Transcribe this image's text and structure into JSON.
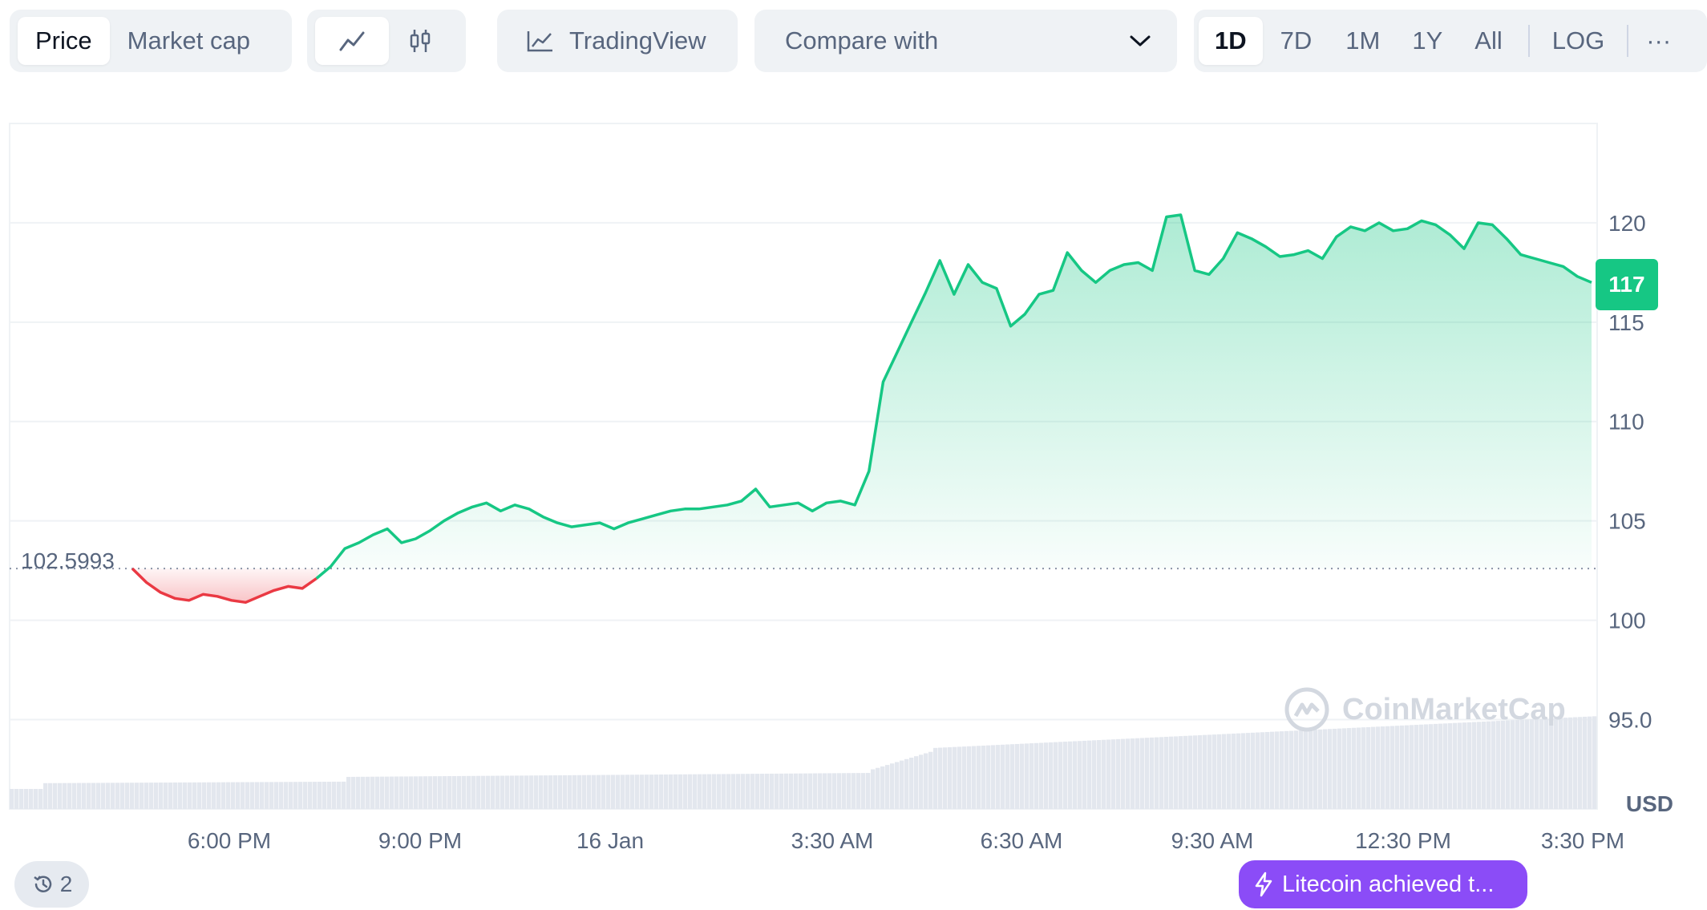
{
  "toolbar": {
    "type_tabs": [
      {
        "label": "Price",
        "active": true
      },
      {
        "label": "Market cap",
        "active": false
      }
    ],
    "chart_style": {
      "line_icon": "line-chart-icon",
      "candle_icon": "candlestick-icon",
      "active": "line"
    },
    "tradingview_label": "TradingView",
    "tradingview_icon": "trading-view-chart-icon",
    "compare_label": "Compare with",
    "compare_icon": "chevron-down-icon",
    "ranges": [
      "1D",
      "7D",
      "1M",
      "1Y",
      "All"
    ],
    "active_range": "1D",
    "log_label": "LOG",
    "more_label": "···"
  },
  "chart": {
    "reference_label": "102.5993",
    "current_price_label": "117",
    "y_ticks": [
      "120",
      "115",
      "110",
      "105",
      "100",
      "95.0"
    ],
    "x_ticks": [
      "6:00 PM",
      "9:00 PM",
      "16 Jan",
      "3:30 AM",
      "6:30 AM",
      "9:30 AM",
      "12:30 PM",
      "3:30 PM"
    ],
    "currency_label": "USD",
    "watermark_text": "CoinMarketCap",
    "colors": {
      "up": "#16c784",
      "down": "#ea3943",
      "grid": "#eff2f5"
    }
  },
  "chart_data": {
    "type": "area",
    "ylim": [
      90.5,
      125
    ],
    "reference_value": 102.5993,
    "y_ticks": [
      120,
      115,
      110,
      105,
      100,
      95
    ],
    "x_tick_labels": [
      "6:00 PM",
      "9:00 PM",
      "16 Jan",
      "3:30 AM",
      "6:30 AM",
      "9:30 AM",
      "12:30 PM",
      "3:30 PM"
    ],
    "series": [
      {
        "values": [
          102.6,
          101.9,
          101.4,
          101.1,
          101.0,
          101.3,
          101.2,
          101.0,
          100.9,
          101.2,
          101.5,
          101.7,
          101.6,
          102.1,
          102.7,
          103.6,
          103.9,
          104.3,
          104.6,
          103.9,
          104.1,
          104.5,
          105.0,
          105.4,
          105.7,
          105.9,
          105.5,
          105.8,
          105.6,
          105.2,
          104.9,
          104.7,
          104.8,
          104.9,
          104.6,
          104.9,
          105.1,
          105.3,
          105.5,
          105.6,
          105.6,
          105.7,
          105.8,
          106.0,
          106.6,
          105.7,
          105.8,
          105.9,
          105.5,
          105.9,
          106.0,
          105.8,
          107.5,
          112.0,
          113.5,
          115.0,
          116.5,
          118.1,
          116.4,
          117.9,
          117.0,
          116.7,
          114.8,
          115.4,
          116.4,
          116.6,
          118.5,
          117.6,
          117.0,
          117.6,
          117.9,
          118.0,
          117.6,
          120.3,
          120.4,
          117.6,
          117.4,
          118.2,
          119.5,
          119.2,
          118.8,
          118.3,
          118.4,
          118.6,
          118.2,
          119.3,
          119.8,
          119.6,
          120.0,
          119.6,
          119.7,
          120.1,
          119.9,
          119.4,
          118.7,
          120.0,
          119.9,
          119.2,
          118.4,
          118.2,
          118.0,
          117.8,
          117.3,
          117.0
        ]
      }
    ]
  },
  "badge": {
    "text": "Litecoin achieved t...",
    "icon": "lightning-icon"
  },
  "history": {
    "count": "2",
    "icon": "history-icon"
  }
}
